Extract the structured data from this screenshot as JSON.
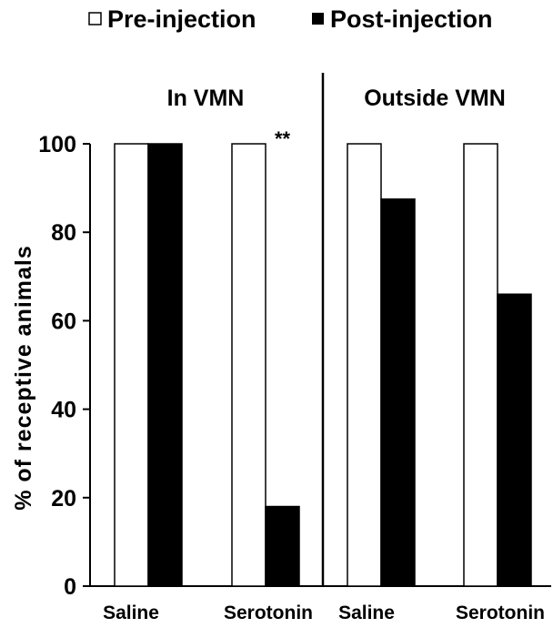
{
  "chart_data": {
    "type": "bar",
    "ylabel": "% of receptive animals",
    "ylim": [
      0,
      100
    ],
    "yticks": [
      0,
      20,
      40,
      60,
      80,
      100
    ],
    "legend": {
      "placement": "top",
      "entries": [
        {
          "name": "Pre-injection",
          "fill": "#ffffff"
        },
        {
          "name": "Post-injection",
          "fill": "#000000"
        }
      ]
    },
    "panels": [
      {
        "title": "In VMN",
        "categories": [
          "Saline",
          "Serotonin"
        ],
        "series": [
          {
            "name": "Pre-injection",
            "values": [
              100,
              100
            ]
          },
          {
            "name": "Post-injection",
            "values": [
              100,
              18
            ]
          }
        ],
        "annotations": [
          {
            "category": "Serotonin",
            "text": "**"
          }
        ]
      },
      {
        "title": "Outside VMN",
        "categories": [
          "Saline",
          "Serotonin"
        ],
        "series": [
          {
            "name": "Pre-injection",
            "values": [
              100,
              100
            ]
          },
          {
            "name": "Post-injection",
            "values": [
              87.5,
              66
            ]
          }
        ],
        "annotations": []
      }
    ],
    "colors": {
      "bar_edge": "#000000",
      "pre": "#ffffff",
      "post": "#000000"
    }
  }
}
